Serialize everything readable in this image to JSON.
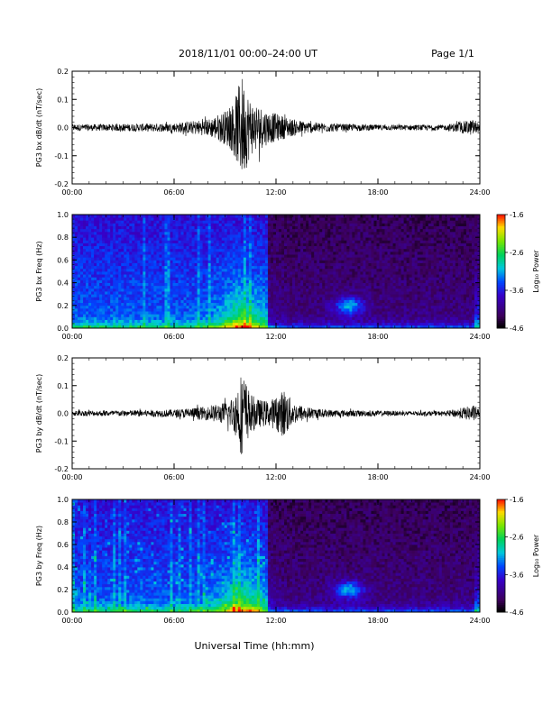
{
  "header": {
    "title": "2018/11/01   00:00–24:00 UT",
    "page": "Page 1/1"
  },
  "xlabel": "Universal Time (hh:mm)",
  "x_ticks": [
    "00:00",
    "06:00",
    "12:00",
    "18:00",
    "24:00"
  ],
  "colorbar_label": "Log₁₀ Power",
  "chart_data": [
    {
      "type": "line",
      "ylabel": "PG3 bx dB/dt (nT/sec)",
      "xlim": [
        0,
        24
      ],
      "ylim": [
        -0.2,
        0.2
      ],
      "y_ticks": [
        "-0.2",
        "-0.1",
        "0.0",
        "0.1",
        "0.2"
      ],
      "x_ticks": [
        "00:00",
        "06:00",
        "12:00",
        "18:00",
        "24:00"
      ],
      "envelope_hours": [
        0,
        2,
        4,
        6,
        8,
        9,
        9.5,
        10,
        10.5,
        11,
        11.5,
        12,
        13,
        14,
        15,
        16,
        18,
        20,
        22,
        23.7,
        24
      ],
      "envelope_amp": [
        0.012,
        0.012,
        0.014,
        0.016,
        0.03,
        0.06,
        0.09,
        0.19,
        0.1,
        0.08,
        0.06,
        0.05,
        0.03,
        0.02,
        0.016,
        0.013,
        0.01,
        0.01,
        0.01,
        0.03,
        0.01
      ]
    },
    {
      "type": "heatmap",
      "ylabel": "PG3 bx Freq (Hz)",
      "xlim": [
        0,
        24
      ],
      "ylim": [
        0.0,
        1.0
      ],
      "y_ticks": [
        "0.0",
        "0.2",
        "0.4",
        "0.6",
        "0.8",
        "1.0"
      ],
      "x_ticks": [
        "00:00",
        "06:00",
        "12:00",
        "18:00",
        "24:00"
      ],
      "color_range": [
        -4.6,
        -1.6
      ],
      "colorbar_ticks": [
        "-1.6",
        "-2.6",
        "-3.6",
        "-4.6"
      ]
    },
    {
      "type": "line",
      "ylabel": "PG3 by dB/dt (nT/sec)",
      "xlim": [
        0,
        24
      ],
      "ylim": [
        -0.2,
        0.2
      ],
      "y_ticks": [
        "-0.2",
        "-0.1",
        "0.0",
        "0.1",
        "0.2"
      ],
      "x_ticks": [
        "00:00",
        "06:00",
        "12:00",
        "18:00",
        "24:00"
      ],
      "envelope_hours": [
        0,
        2,
        4,
        6,
        8,
        9,
        9.5,
        10,
        10.5,
        11,
        11.5,
        12,
        12.5,
        13,
        14,
        15,
        16,
        18,
        20,
        22,
        23.7,
        24
      ],
      "envelope_amp": [
        0.01,
        0.01,
        0.012,
        0.014,
        0.025,
        0.04,
        0.06,
        0.16,
        0.07,
        0.05,
        0.045,
        0.06,
        0.09,
        0.04,
        0.02,
        0.014,
        0.012,
        0.01,
        0.008,
        0.008,
        0.03,
        0.01
      ]
    },
    {
      "type": "heatmap",
      "ylabel": "PG3 by Freq (Hz)",
      "xlim": [
        0,
        24
      ],
      "ylim": [
        0.0,
        1.0
      ],
      "y_ticks": [
        "0.0",
        "0.2",
        "0.4",
        "0.6",
        "0.8",
        "1.0"
      ],
      "x_ticks": [
        "00:00",
        "06:00",
        "12:00",
        "18:00",
        "24:00"
      ],
      "color_range": [
        -4.6,
        -1.6
      ],
      "colorbar_ticks": [
        "-1.6",
        "-2.6",
        "-3.6",
        "-4.6"
      ]
    }
  ]
}
